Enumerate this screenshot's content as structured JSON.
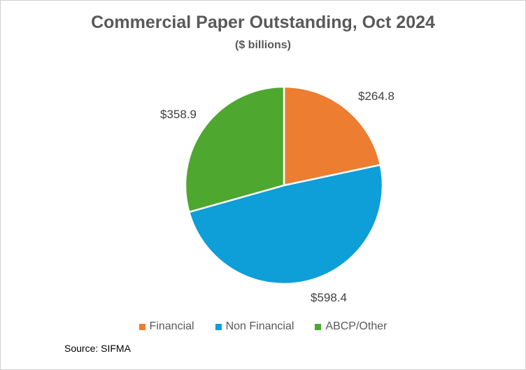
{
  "chart_data": {
    "type": "pie",
    "title": "Commercial Paper Outstanding,  Oct 2024",
    "subtitle": "($ billions)",
    "categories": [
      "Financial",
      "Non Financial",
      "ABCP/Other"
    ],
    "values": [
      264.8,
      598.4,
      358.9
    ],
    "data_labels": [
      "$264.8",
      "$598.4",
      "$358.9"
    ],
    "colors": [
      "#ED7D31",
      "#0E9ED8",
      "#4EA72E"
    ],
    "legend_placement": "bottom",
    "source": "Source: SIFMA"
  }
}
